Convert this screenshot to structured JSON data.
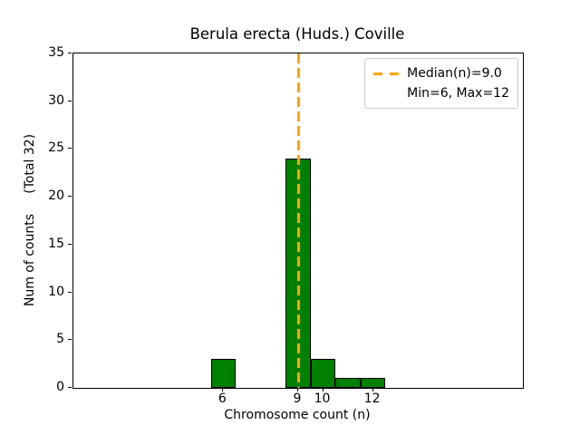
{
  "chart_data": {
    "type": "bar",
    "title": "Berula erecta (Huds.) Coville",
    "xlabel": "Chromosome count (n)",
    "ylabel": "Num of counts     (Total 32)",
    "total_counts": 32,
    "x": [
      6,
      9,
      10,
      11,
      12
    ],
    "values": [
      3,
      24,
      3,
      1,
      1
    ],
    "bar_width": 1,
    "bar_color": "#008000",
    "bar_edge_color": "#000000",
    "xlim": [
      0,
      18
    ],
    "ylim": [
      0,
      35
    ],
    "xticks": [
      6,
      9,
      10,
      12
    ],
    "yticks": [
      0,
      5,
      10,
      15,
      20,
      25,
      30,
      35
    ],
    "grid": false,
    "median_line": {
      "x": 9.0,
      "color": "#ffa500",
      "style": "dashed"
    },
    "legend": {
      "position": "upper right",
      "entries": [
        {
          "label": "Median(n)=9.0",
          "swatch": "dashed-line",
          "color": "#ffa500"
        },
        {
          "label": "Min=6, Max=12",
          "swatch": "none"
        }
      ]
    }
  }
}
